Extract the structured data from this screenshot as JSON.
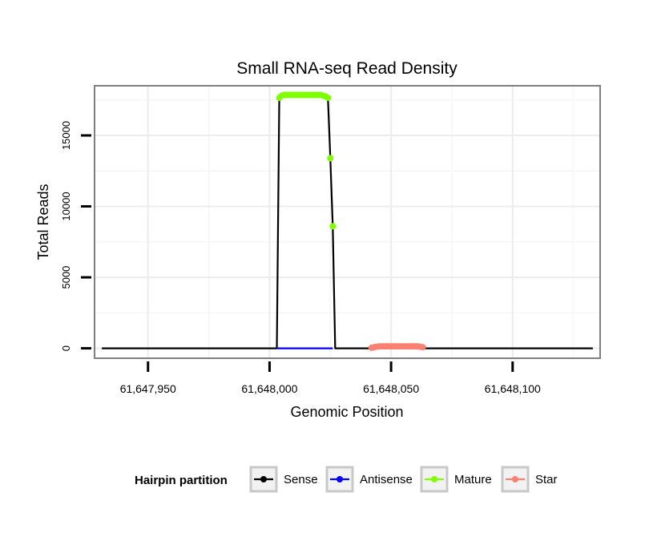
{
  "chart_data": {
    "type": "line",
    "title": "Small RNA-seq Read Density",
    "xlabel": "Genomic Position",
    "ylabel": "Total Reads",
    "xlim": [
      61647928,
      61648136
    ],
    "ylim": [
      -700,
      18500
    ],
    "x_ticks": [
      61647950,
      61648000,
      61648050,
      61648100
    ],
    "x_tick_labels": [
      "61,647,950",
      "61,648,000",
      "61,648,050",
      "61,648,100"
    ],
    "y_ticks": [
      0,
      5000,
      10000,
      15000
    ],
    "y_tick_labels": [
      "0",
      "5000",
      "10000",
      "15000"
    ],
    "grid": true,
    "legend": {
      "title": "Hairpin partition",
      "position": "bottom",
      "entries": [
        {
          "name": "Sense",
          "color": "#000000"
        },
        {
          "name": "Antisense",
          "color": "#0000ff"
        },
        {
          "name": "Mature",
          "color": "#7fff00"
        },
        {
          "name": "Star",
          "color": "#fa8072"
        }
      ]
    },
    "series": [
      {
        "name": "Sense",
        "color": "#000000",
        "style": "line",
        "x": [
          61647931,
          61648003,
          61648004,
          61648005,
          61648023,
          61648024,
          61648025,
          61648026,
          61648027,
          61648133
        ],
        "y": [
          0,
          0,
          17600,
          17800,
          17800,
          17700,
          13400,
          8600,
          0,
          0
        ]
      },
      {
        "name": "Antisense",
        "color": "#0000ff",
        "style": "line",
        "x": [
          61648003,
          61648026
        ],
        "y": [
          0,
          0
        ]
      },
      {
        "name": "Mature",
        "color": "#7fff00",
        "style": "points",
        "x": [
          61648004,
          61648005,
          61648006,
          61648007,
          61648008,
          61648009,
          61648010,
          61648011,
          61648012,
          61648013,
          61648014,
          61648015,
          61648016,
          61648017,
          61648018,
          61648019,
          61648020,
          61648021,
          61648022,
          61648023,
          61648024,
          61648025,
          61648026
        ],
        "y": [
          17650,
          17800,
          17850,
          17850,
          17850,
          17850,
          17850,
          17850,
          17850,
          17850,
          17850,
          17850,
          17850,
          17850,
          17850,
          17850,
          17850,
          17850,
          17800,
          17750,
          17650,
          13400,
          8600
        ]
      },
      {
        "name": "Star",
        "color": "#fa8072",
        "style": "points",
        "x": [
          61648042,
          61648043,
          61648044,
          61648045,
          61648046,
          61648047,
          61648048,
          61648049,
          61648050,
          61648051,
          61648052,
          61648053,
          61648054,
          61648055,
          61648056,
          61648057,
          61648058,
          61648059,
          61648060,
          61648061,
          61648062,
          61648063
        ],
        "y": [
          40,
          80,
          110,
          130,
          140,
          140,
          140,
          140,
          140,
          140,
          140,
          140,
          140,
          140,
          140,
          140,
          140,
          140,
          140,
          130,
          110,
          80
        ]
      }
    ]
  }
}
